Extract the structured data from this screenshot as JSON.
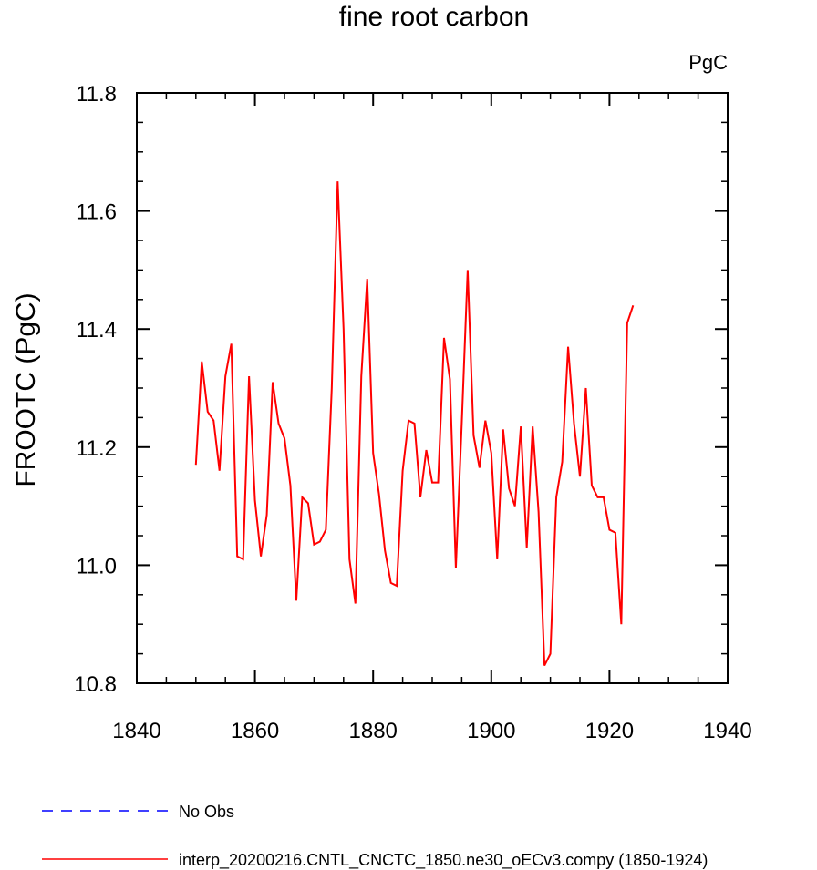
{
  "chart_data": {
    "type": "line",
    "title": "fine root carbon",
    "units": "PgC",
    "ylabel": "FROOTC  (PgC)",
    "xlabel": "",
    "xlim": [
      1840,
      1940
    ],
    "ylim": [
      10.8,
      11.8
    ],
    "xticks": [
      1840,
      1860,
      1880,
      1900,
      1920,
      1940
    ],
    "yticks": [
      10.8,
      11.0,
      11.2,
      11.4,
      11.6,
      11.8
    ],
    "ytick_labels": [
      "10.8",
      "11.0",
      "11.2",
      "11.4",
      "11.6",
      "11.8"
    ],
    "grid": false,
    "legend_position": "bottom",
    "legend": [
      {
        "label": "No Obs",
        "color": "#0000ff",
        "style": "dashed"
      },
      {
        "label": "interp_20200216.CNTL_CNCTC_1850.ne30_oECv3.compy (1850-1924)",
        "color": "#ff0000",
        "style": "solid"
      }
    ],
    "series": [
      {
        "color": "#ff0000",
        "x": [
          1850,
          1851,
          1852,
          1853,
          1854,
          1855,
          1856,
          1857,
          1858,
          1859,
          1860,
          1861,
          1862,
          1863,
          1864,
          1865,
          1866,
          1867,
          1868,
          1869,
          1870,
          1871,
          1872,
          1873,
          1874,
          1875,
          1876,
          1877,
          1878,
          1879,
          1880,
          1881,
          1882,
          1883,
          1884,
          1885,
          1886,
          1887,
          1888,
          1889,
          1890,
          1891,
          1892,
          1893,
          1894,
          1895,
          1896,
          1897,
          1898,
          1899,
          1900,
          1901,
          1902,
          1903,
          1904,
          1905,
          1906,
          1907,
          1908,
          1909,
          1910,
          1911,
          1912,
          1913,
          1914,
          1915,
          1916,
          1917,
          1918,
          1919,
          1920,
          1921,
          1922,
          1923,
          1924
        ],
        "y": [
          11.17,
          11.345,
          11.26,
          11.245,
          11.16,
          11.32,
          11.375,
          11.015,
          11.01,
          11.32,
          11.11,
          11.015,
          11.085,
          11.31,
          11.24,
          11.215,
          11.135,
          10.94,
          11.115,
          11.105,
          11.035,
          11.04,
          11.06,
          11.3,
          11.65,
          11.4,
          11.01,
          10.935,
          11.32,
          11.485,
          11.19,
          11.12,
          11.025,
          10.97,
          10.965,
          11.16,
          11.245,
          11.24,
          11.115,
          11.195,
          11.14,
          11.14,
          11.385,
          11.315,
          10.995,
          11.24,
          11.5,
          11.22,
          11.165,
          11.245,
          11.19,
          11.01,
          11.23,
          11.13,
          11.1,
          11.235,
          11.03,
          11.235,
          11.09,
          10.83,
          10.85,
          11.115,
          11.175,
          11.37,
          11.24,
          11.15,
          11.3,
          11.135,
          11.115,
          11.115,
          11.06,
          11.055,
          10.9,
          11.41,
          11.44
        ]
      }
    ]
  }
}
